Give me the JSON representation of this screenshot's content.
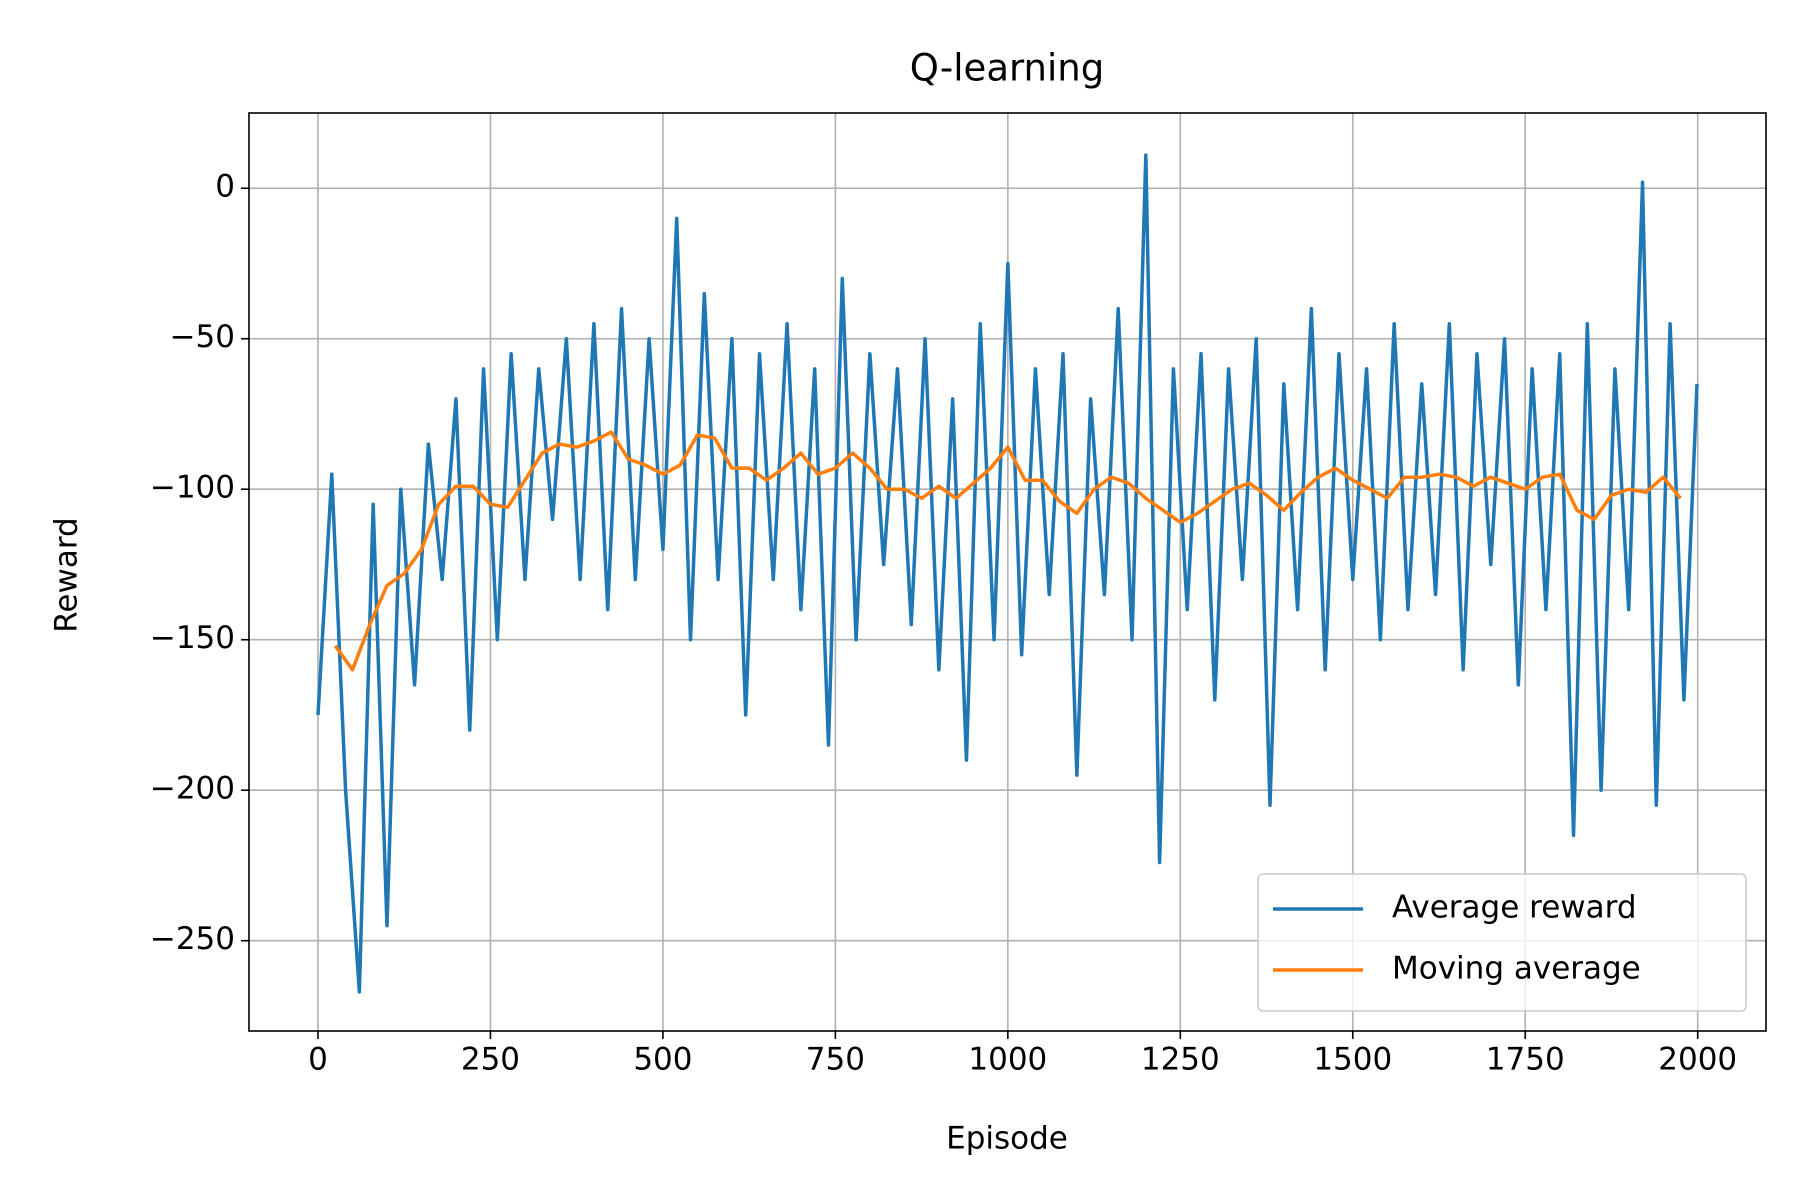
{
  "chart_data": {
    "type": "line",
    "title": "Q-learning",
    "x_label": "Episode",
    "y_label": "Reward",
    "xlim": [
      -100,
      2099
    ],
    "ylim": [
      -280,
      25
    ],
    "xticks": [
      0,
      250,
      500,
      750,
      1000,
      1250,
      1500,
      1750,
      2000
    ],
    "yticks": [
      {
        "value": -250,
        "label": "−250"
      },
      {
        "value": -200,
        "label": "−200"
      },
      {
        "value": -150,
        "label": "−150"
      },
      {
        "value": -100,
        "label": "−100"
      },
      {
        "value": -50,
        "label": "−50"
      },
      0
    ],
    "grid": true,
    "legend": "lower right",
    "series": [
      {
        "name": "Average reward",
        "color": "#1f77b4",
        "x": [
          0,
          20,
          40,
          60,
          80,
          100,
          120,
          140,
          160,
          180,
          200,
          220,
          240,
          260,
          280,
          300,
          320,
          340,
          360,
          380,
          400,
          420,
          440,
          460,
          480,
          500,
          520,
          540,
          560,
          580,
          600,
          620,
          640,
          660,
          680,
          700,
          720,
          740,
          760,
          780,
          800,
          820,
          840,
          860,
          880,
          900,
          920,
          940,
          960,
          980,
          1000,
          1020,
          1040,
          1060,
          1080,
          1100,
          1120,
          1140,
          1160,
          1180,
          1200,
          1220,
          1240,
          1260,
          1280,
          1300,
          1320,
          1340,
          1360,
          1380,
          1400,
          1420,
          1440,
          1460,
          1480,
          1500,
          1520,
          1540,
          1560,
          1580,
          1600,
          1620,
          1640,
          1660,
          1680,
          1700,
          1720,
          1740,
          1760,
          1780,
          1800,
          1820,
          1840,
          1860,
          1880,
          1900,
          1920,
          1940,
          1960,
          1980,
          1999
        ],
        "values": [
          -175,
          -95,
          -200,
          -267,
          -105,
          -245,
          -100,
          -165,
          -85,
          -130,
          -70,
          -180,
          -60,
          -150,
          -55,
          -130,
          -60,
          -110,
          -50,
          -130,
          -45,
          -140,
          -40,
          -130,
          -50,
          -120,
          -10,
          -150,
          -35,
          -130,
          -50,
          -175,
          -55,
          -130,
          -45,
          -140,
          -60,
          -185,
          -30,
          -150,
          -55,
          -125,
          -60,
          -145,
          -50,
          -160,
          -70,
          -190,
          -45,
          -150,
          -25,
          -155,
          -60,
          -135,
          -55,
          -195,
          -70,
          -135,
          -40,
          -150,
          11,
          -224,
          -60,
          -140,
          -55,
          -170,
          -60,
          -130,
          -50,
          -205,
          -65,
          -140,
          -40,
          -160,
          -55,
          -130,
          -60,
          -150,
          -45,
          -140,
          -65,
          -135,
          -45,
          -160,
          -55,
          -125,
          -50,
          -165,
          -60,
          -140,
          -55,
          -215,
          -45,
          -200,
          -60,
          -140,
          2,
          -205,
          -45,
          -170,
          -65
        ]
      },
      {
        "name": "Moving average",
        "color": "#ff7f0e",
        "x": [
          25,
          50,
          75,
          100,
          125,
          150,
          175,
          200,
          225,
          250,
          275,
          300,
          325,
          350,
          375,
          400,
          425,
          450,
          475,
          500,
          525,
          550,
          575,
          600,
          625,
          650,
          675,
          700,
          725,
          750,
          775,
          800,
          825,
          850,
          875,
          900,
          925,
          950,
          975,
          1000,
          1025,
          1050,
          1075,
          1100,
          1125,
          1150,
          1175,
          1200,
          1225,
          1250,
          1275,
          1300,
          1325,
          1350,
          1375,
          1400,
          1425,
          1450,
          1475,
          1500,
          1525,
          1550,
          1575,
          1600,
          1625,
          1650,
          1675,
          1700,
          1725,
          1750,
          1775,
          1800,
          1825,
          1850,
          1875,
          1900,
          1925,
          1950,
          1975
        ],
        "values": [
          -152,
          -160,
          -145,
          -132,
          -128,
          -120,
          -105,
          -99,
          -99,
          -105,
          -106,
          -97,
          -88,
          -85,
          -86,
          -84,
          -81,
          -90,
          -92,
          -95,
          -92,
          -82,
          -83,
          -93,
          -93,
          -97,
          -93,
          -88,
          -95,
          -93,
          -88,
          -93,
          -100,
          -100,
          -103,
          -99,
          -103,
          -98,
          -93,
          -86,
          -97,
          -97,
          -104,
          -108,
          -100,
          -96,
          -98,
          -103,
          -107,
          -111,
          -108,
          -104,
          -100,
          -98,
          -102,
          -107,
          -101,
          -96,
          -93,
          -97,
          -100,
          -103,
          -96,
          -96,
          -95,
          -96,
          -99,
          -96,
          -98,
          -100,
          -96,
          -95,
          -107,
          -110,
          -102,
          -100,
          -101,
          -96,
          -103
        ]
      }
    ]
  }
}
